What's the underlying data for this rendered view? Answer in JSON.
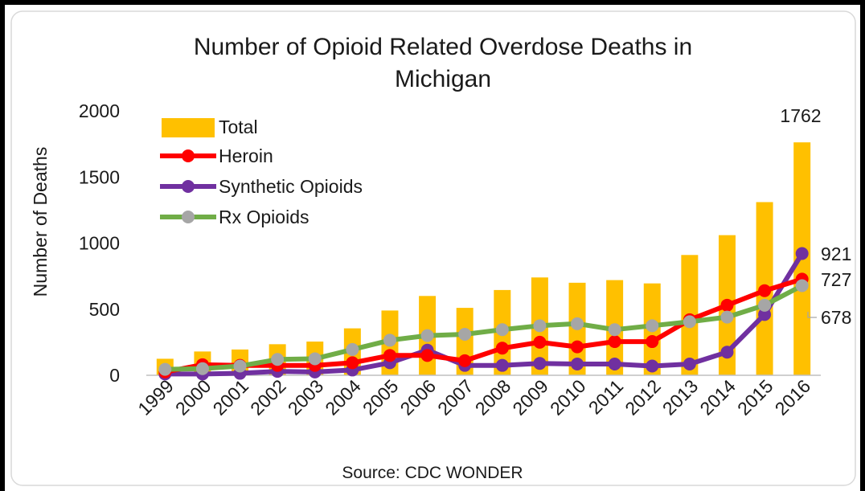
{
  "chart_data": {
    "type": "bar+line",
    "title": "Number of Opioid Related Overdose Deaths in Michigan",
    "title_lines": [
      "Number of Opioid Related Overdose Deaths in",
      "Michigan"
    ],
    "ylabel": "Number of Deaths",
    "source": "Source: CDC WONDER",
    "ylim": [
      0,
      2000
    ],
    "yticks": [
      "0",
      "500",
      "1000",
      "1500",
      "2000"
    ],
    "categories": [
      "1999",
      "2000",
      "2001",
      "2002",
      "2003",
      "2004",
      "2005",
      "2006",
      "2007",
      "2008",
      "2009",
      "2010",
      "2011",
      "2012",
      "2013",
      "2014",
      "2015",
      "2016"
    ],
    "legend_placement": "top-left",
    "grid": false,
    "series": [
      {
        "name": "Total",
        "kind": "bar",
        "color": "#FFC000",
        "values": [
          125,
          180,
          195,
          235,
          255,
          355,
          490,
          600,
          510,
          645,
          740,
          700,
          720,
          695,
          910,
          1060,
          1310,
          1762
        ]
      },
      {
        "name": "Heroin",
        "kind": "line",
        "color": "#FF0000",
        "values": [
          25,
          80,
          75,
          75,
          75,
          95,
          150,
          150,
          110,
          205,
          250,
          215,
          255,
          255,
          420,
          530,
          640,
          727
        ]
      },
      {
        "name": "Synthetic Opioids",
        "kind": "line",
        "color": "#7030A0",
        "values": [
          10,
          10,
          15,
          30,
          25,
          40,
          95,
          190,
          75,
          75,
          90,
          85,
          85,
          70,
          85,
          175,
          460,
          921
        ]
      },
      {
        "name": "Rx Opioids",
        "kind": "line",
        "color": "#70AD47",
        "marker_color": "#A6A6A6",
        "values": [
          45,
          50,
          70,
          120,
          125,
          195,
          265,
          300,
          310,
          345,
          375,
          390,
          345,
          375,
          405,
          440,
          530,
          678
        ]
      }
    ],
    "data_labels": {
      "total_2016": "1762",
      "synthetic_2016": "921",
      "heroin_2016": "727",
      "rx_2016": "678"
    }
  }
}
